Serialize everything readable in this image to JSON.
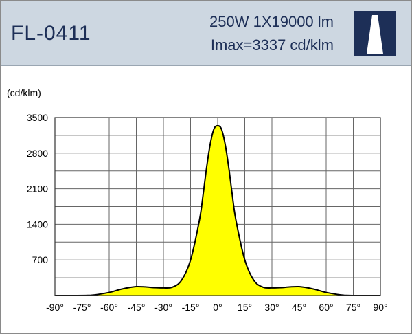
{
  "header": {
    "model": "FL-0411",
    "power_line": "250W  1X19000  lm",
    "imax_line": "Imax=3337 cd/klm"
  },
  "logo_icon": "lamp-beam-logo",
  "colors": {
    "header_bg": "#cdd7e1",
    "text": "#1d2f57",
    "logo_bg": "#1d2f57",
    "curve_fill": "#ffff00",
    "curve_stroke": "#000000",
    "grid": "#666666"
  },
  "chart_data": {
    "type": "area",
    "ylabel": "(cd/klm)",
    "xlabel": "",
    "x": [
      -90,
      -80,
      -70,
      -60,
      -55,
      -50,
      -45,
      -40,
      -35,
      -30,
      -25,
      -20,
      -15,
      -10,
      -8,
      -6,
      -4,
      -2,
      0,
      2,
      4,
      6,
      8,
      10,
      15,
      20,
      25,
      30,
      35,
      40,
      45,
      50,
      55,
      60,
      70,
      80,
      90
    ],
    "values": [
      0,
      0,
      5,
      60,
      110,
      150,
      175,
      170,
      155,
      150,
      165,
      300,
      700,
      1500,
      2000,
      2550,
      3000,
      3280,
      3337,
      3280,
      3000,
      2550,
      2000,
      1500,
      700,
      300,
      165,
      150,
      155,
      170,
      175,
      150,
      110,
      60,
      5,
      0,
      0
    ],
    "xlim": [
      -90,
      90
    ],
    "ylim": [
      0,
      3500
    ],
    "x_ticks": [
      -90,
      -75,
      -60,
      -45,
      -30,
      -15,
      0,
      15,
      30,
      45,
      60,
      75,
      90
    ],
    "x_tick_labels": [
      "-90°",
      "-75°",
      "-60°",
      "-45°",
      "-30°",
      "-15°",
      "0°",
      "15°",
      "30°",
      "45°",
      "60°",
      "75°",
      "90°"
    ],
    "y_ticks": [
      700,
      1400,
      2100,
      2800,
      3500
    ],
    "y_tick_labels": [
      "700",
      "1400",
      "2100",
      "2800",
      "3500"
    ],
    "grid": true,
    "grid_x_step": 15,
    "grid_y_step": 350
  }
}
